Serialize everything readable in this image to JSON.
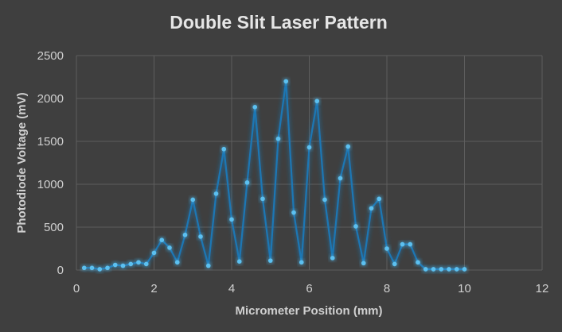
{
  "chart_data": {
    "type": "line",
    "title": "Double Slit Laser Pattern",
    "xlabel": "Micrometer Position (mm)",
    "ylabel": "Photodiode Voltage (mV)",
    "xlim": [
      0,
      12
    ],
    "ylim": [
      0,
      2500
    ],
    "xticks": [
      0,
      2,
      4,
      6,
      8,
      10,
      12
    ],
    "yticks": [
      0,
      500,
      1000,
      1500,
      2000,
      2500
    ],
    "grid": true,
    "legend": "none",
    "colors": {
      "series": "#1f77b4",
      "marker": "#5bc0f0",
      "background": "#3f3f3f"
    },
    "series": [
      {
        "x": [
          0.2,
          0.4,
          0.6,
          0.8,
          1.0,
          1.2,
          1.4,
          1.6,
          1.8,
          2.0,
          2.2,
          2.4,
          2.6,
          2.8,
          3.0,
          3.2,
          3.4,
          3.6,
          3.8,
          4.0,
          4.2,
          4.4,
          4.6,
          4.8,
          5.0,
          5.2,
          5.4,
          5.6,
          5.8,
          6.0,
          6.2,
          6.4,
          6.6,
          6.8,
          7.0,
          7.2,
          7.4,
          7.6,
          7.8,
          8.0,
          8.2,
          8.4,
          8.6,
          8.8,
          9.0,
          9.2,
          9.4,
          9.6,
          9.8,
          10.0
        ],
        "y": [
          25,
          25,
          10,
          25,
          60,
          50,
          70,
          90,
          70,
          200,
          350,
          260,
          90,
          410,
          820,
          390,
          50,
          890,
          1410,
          590,
          100,
          1020,
          1900,
          830,
          110,
          1530,
          2200,
          670,
          90,
          1430,
          1970,
          820,
          140,
          1070,
          1440,
          510,
          80,
          720,
          830,
          250,
          70,
          300,
          300,
          90,
          10,
          10,
          10,
          10,
          10,
          10
        ]
      }
    ]
  }
}
